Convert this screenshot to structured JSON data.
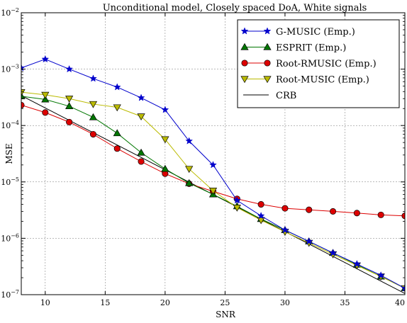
{
  "chart_data": {
    "type": "line",
    "title": "Unconditional model, Closely spaced DoA, White signals",
    "xlabel": "SNR",
    "ylabel": "MSE",
    "xlim": [
      8,
      40
    ],
    "ylim": [
      1e-07,
      0.01
    ],
    "y_scale": "log",
    "grid": true,
    "legend_position": "top-right",
    "x_ticks": [
      10,
      15,
      20,
      25,
      30,
      35,
      40
    ],
    "x_tick_labels": [
      "10",
      "15",
      "20",
      "25",
      "30",
      "35",
      "40"
    ],
    "y_ticks": [
      1e-07,
      1e-06,
      1e-05,
      0.0001,
      0.001,
      0.01
    ],
    "y_tick_labels": [
      {
        "base": "10",
        "exp": "−7"
      },
      {
        "base": "10",
        "exp": "−6"
      },
      {
        "base": "10",
        "exp": "−5"
      },
      {
        "base": "10",
        "exp": "−4"
      },
      {
        "base": "10",
        "exp": "−3"
      },
      {
        "base": "10",
        "exp": "−2"
      }
    ],
    "series": [
      {
        "name": "G-MUSIC (Emp.)",
        "color": "#0000cc",
        "marker": "star",
        "x": [
          8,
          10,
          12,
          14,
          16,
          18,
          20,
          22,
          24,
          26,
          28,
          30,
          32,
          34,
          36,
          38,
          40
        ],
        "y": [
          0.00105,
          0.0015,
          0.001,
          0.00068,
          0.00048,
          0.00031,
          0.00019,
          5.3e-05,
          2e-05,
          4.7e-06,
          2.5e-06,
          1.4e-06,
          8.8e-07,
          5.5e-07,
          3.5e-07,
          2.2e-07,
          1.3e-07
        ]
      },
      {
        "name": "ESPRIT (Emp.)",
        "color": "#007700",
        "marker": "triangle-up",
        "x": [
          8,
          10,
          12,
          14,
          16,
          18,
          20,
          22,
          24,
          26,
          28,
          30,
          32,
          34,
          36,
          38,
          40
        ],
        "y": [
          0.00033,
          0.00029,
          0.00022,
          0.00014,
          7.3e-05,
          3.3e-05,
          1.7e-05,
          9.5e-06,
          6e-06,
          3.7e-06,
          2.2e-06,
          1.4e-06,
          8.8e-07,
          5.5e-07,
          3.4e-07,
          2.1e-07,
          1.3e-07
        ]
      },
      {
        "name": "Root-RMUSIC (Emp.)",
        "color": "#dd0000",
        "marker": "circle",
        "x": [
          8,
          10,
          12,
          14,
          16,
          18,
          20,
          22,
          24,
          26,
          28,
          30,
          32,
          34,
          36,
          38,
          40
        ],
        "y": [
          0.00023,
          0.00017,
          0.000115,
          7e-05,
          3.9e-05,
          2.3e-05,
          1.4e-05,
          9.3e-06,
          6.8e-06,
          5e-06,
          4e-06,
          3.4e-06,
          3.2e-06,
          3e-06,
          2.8e-06,
          2.6e-06,
          2.5e-06
        ]
      },
      {
        "name": "Root-MUSIC (Emp.)",
        "color": "#bbbb00",
        "marker": "triangle-down",
        "x": [
          8,
          10,
          12,
          14,
          16,
          18,
          20,
          22,
          24,
          26,
          28,
          30,
          32,
          34,
          36,
          38,
          40
        ],
        "y": [
          0.00039,
          0.00035,
          0.0003,
          0.00024,
          0.00021,
          0.000145,
          5.7e-05,
          1.7e-05,
          7e-06,
          3.5e-06,
          2.1e-06,
          1.3e-06,
          8.3e-07,
          5.2e-07,
          3.3e-07,
          2.1e-07,
          1.3e-07
        ]
      },
      {
        "name": "CRB",
        "color": "#000000",
        "marker": "none",
        "x": [
          8,
          40
        ],
        "y": [
          0.00034,
          1.05e-07
        ]
      }
    ]
  }
}
